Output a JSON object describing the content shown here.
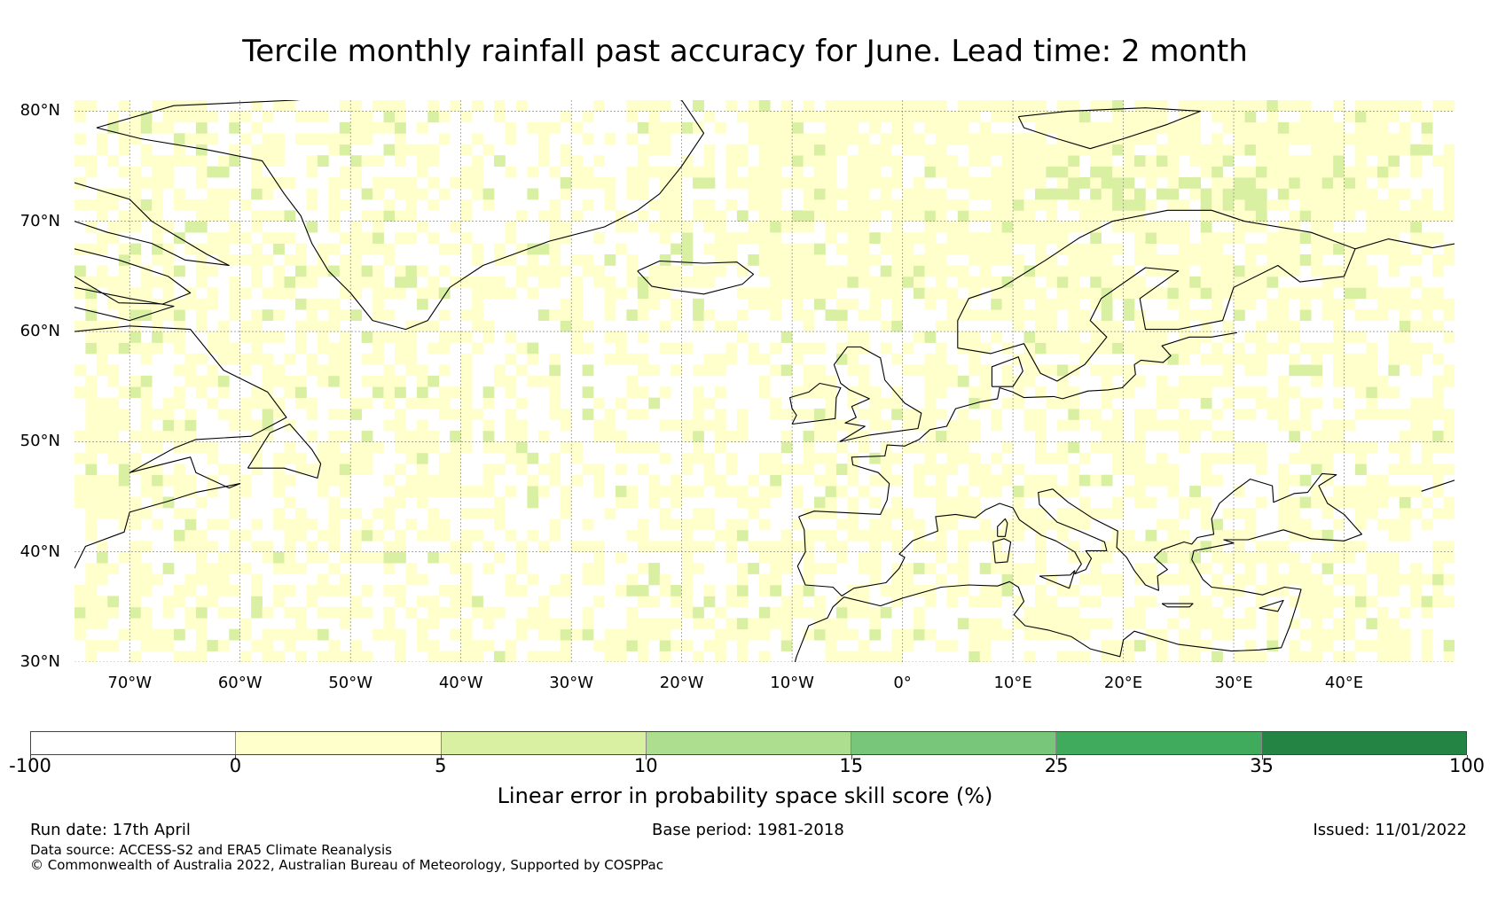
{
  "title": "Tercile monthly rainfall past accuracy for June. Lead time: 2 month",
  "map": {
    "lat_range": [
      30,
      81
    ],
    "lon_range": [
      -75,
      50
    ],
    "lat_ticks": [
      {
        "value": 80,
        "label": "80°N"
      },
      {
        "value": 70,
        "label": "70°N"
      },
      {
        "value": 60,
        "label": "60°N"
      },
      {
        "value": 50,
        "label": "50°N"
      },
      {
        "value": 40,
        "label": "40°N"
      },
      {
        "value": 30,
        "label": "30°N"
      }
    ],
    "lon_ticks": [
      {
        "value": -70,
        "label": "70°W"
      },
      {
        "value": -60,
        "label": "60°W"
      },
      {
        "value": -50,
        "label": "50°W"
      },
      {
        "value": -40,
        "label": "40°W"
      },
      {
        "value": -30,
        "label": "30°W"
      },
      {
        "value": -20,
        "label": "20°W"
      },
      {
        "value": -10,
        "label": "10°W"
      },
      {
        "value": 0,
        "label": "0°"
      },
      {
        "value": 10,
        "label": "10°E"
      },
      {
        "value": 20,
        "label": "20°E"
      },
      {
        "value": 30,
        "label": "30°E"
      },
      {
        "value": 40,
        "label": "40°E"
      }
    ],
    "gridlines": true,
    "colors": {
      "no_skill": "#ffffff",
      "skill_0_5": "#ffffcc",
      "skill_5_10": "#d9f0a3",
      "skill_10_15": "#addd8e",
      "skill_15_25": "#78c679",
      "skill_25_35": "#41ab5d",
      "skill_35_100": "#238443",
      "coastline": "#000000",
      "grid": "#777777"
    }
  },
  "colorbar": {
    "label": "Linear error in probability space skill score (%)",
    "ticks": [
      "-100",
      "0",
      "5",
      "10",
      "15",
      "25",
      "35",
      "100"
    ],
    "colors": [
      "#ffffff",
      "#ffffcc",
      "#d9f0a3",
      "#addd8e",
      "#78c679",
      "#41ab5d",
      "#238443"
    ]
  },
  "footer": {
    "run_date": "Run date: 17th April",
    "base_period": "Base period: 1981-2018",
    "issued": "Issued: 11/01/2022",
    "data_source": "Data source: ACCESS-S2 and ERA5 Climate Reanalysis",
    "copyright": "© Commonwealth of Australia 2022, Australian Bureau of Meteorology, Supported by COSPPac"
  }
}
